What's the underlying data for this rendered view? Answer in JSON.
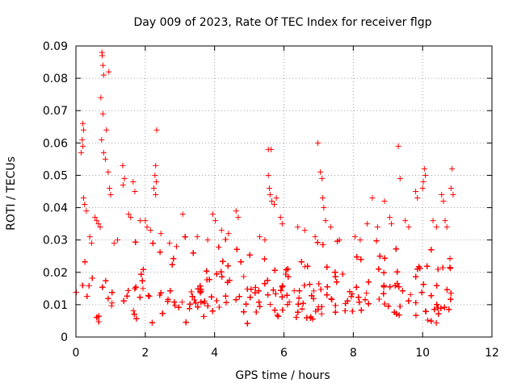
{
  "chart_data": {
    "type": "scatter",
    "title": "Day 009 of 2023, Rate Of TEC Index for receiver flgp",
    "xlabel": "GPS time / hours",
    "ylabel": "ROTI / TECUs",
    "xlim": [
      0,
      12
    ],
    "ylim": [
      0,
      0.09
    ],
    "xticks": [
      0,
      2,
      4,
      6,
      8,
      10,
      12
    ],
    "xtick_labels": [
      "0",
      "2",
      "4",
      "6",
      "8",
      "10",
      "12"
    ],
    "yticks": [
      0,
      0.01,
      0.02,
      0.03,
      0.04,
      0.05,
      0.06,
      0.07,
      0.08,
      0.09
    ],
    "ytick_labels": [
      "0",
      "0.01",
      "0.02",
      "0.03",
      "0.04",
      "0.05",
      "0.06",
      "0.07",
      "0.08",
      "0.09"
    ],
    "grid": true,
    "marker": "+",
    "color": "#ff0000",
    "series": [
      {
        "name": "ROTI",
        "points": [
          [
            0.75,
            0.088
          ],
          [
            0.76,
            0.087
          ],
          [
            0.78,
            0.084
          ],
          [
            0.8,
            0.081
          ],
          [
            0.95,
            0.082
          ],
          [
            0.72,
            0.074
          ],
          [
            0.78,
            0.069
          ],
          [
            0.2,
            0.066
          ],
          [
            0.22,
            0.064
          ],
          [
            0.18,
            0.061
          ],
          [
            0.2,
            0.059
          ],
          [
            0.15,
            0.057
          ],
          [
            0.88,
            0.064
          ],
          [
            0.74,
            0.061
          ],
          [
            0.8,
            0.057
          ],
          [
            0.85,
            0.055
          ],
          [
            2.33,
            0.064
          ],
          [
            1.35,
            0.053
          ],
          [
            0.93,
            0.051
          ],
          [
            1.4,
            0.049
          ],
          [
            1.36,
            0.047
          ],
          [
            1.65,
            0.048
          ],
          [
            0.97,
            0.046
          ],
          [
            1.0,
            0.044
          ],
          [
            1.7,
            0.045
          ],
          [
            2.3,
            0.053
          ],
          [
            2.28,
            0.05
          ],
          [
            2.32,
            0.048
          ],
          [
            2.25,
            0.046
          ],
          [
            2.3,
            0.044
          ],
          [
            0.22,
            0.043
          ],
          [
            0.25,
            0.041
          ],
          [
            0.3,
            0.039
          ],
          [
            6.98,
            0.06
          ],
          [
            9.3,
            0.059
          ],
          [
            5.55,
            0.058
          ],
          [
            5.63,
            0.058
          ],
          [
            7.05,
            0.051
          ],
          [
            7.1,
            0.049
          ],
          [
            9.35,
            0.049
          ],
          [
            10.85,
            0.052
          ],
          [
            10.05,
            0.052
          ],
          [
            10.08,
            0.05
          ],
          [
            10.02,
            0.048
          ],
          [
            10.0,
            0.046
          ],
          [
            5.55,
            0.05
          ],
          [
            5.58,
            0.046
          ],
          [
            5.6,
            0.044
          ],
          [
            5.65,
            0.042
          ],
          [
            5.72,
            0.041
          ],
          [
            5.78,
            0.043
          ],
          [
            7.12,
            0.043
          ],
          [
            7.15,
            0.04
          ],
          [
            8.55,
            0.043
          ],
          [
            8.9,
            0.042
          ],
          [
            9.8,
            0.045
          ],
          [
            9.85,
            0.043
          ],
          [
            10.55,
            0.044
          ],
          [
            10.6,
            0.042
          ],
          [
            10.82,
            0.046
          ],
          [
            10.88,
            0.044
          ],
          [
            3.08,
            0.038
          ],
          [
            3.95,
            0.038
          ],
          [
            4.02,
            0.036
          ],
          [
            4.62,
            0.039
          ],
          [
            4.68,
            0.037
          ],
          [
            0.55,
            0.037
          ],
          [
            0.6,
            0.036
          ],
          [
            0.65,
            0.035
          ],
          [
            0.7,
            0.034
          ],
          [
            1.52,
            0.038
          ],
          [
            1.58,
            0.037
          ],
          [
            1.85,
            0.036
          ],
          [
            2.0,
            0.036
          ],
          [
            2.05,
            0.034
          ],
          [
            2.15,
            0.033
          ],
          [
            2.45,
            0.032
          ],
          [
            5.9,
            0.037
          ],
          [
            5.95,
            0.035
          ],
          [
            6.4,
            0.034
          ],
          [
            6.6,
            0.033
          ],
          [
            7.2,
            0.036
          ],
          [
            7.35,
            0.034
          ],
          [
            8.4,
            0.035
          ],
          [
            8.7,
            0.034
          ],
          [
            9.05,
            0.037
          ],
          [
            9.1,
            0.035
          ],
          [
            9.5,
            0.036
          ],
          [
            9.6,
            0.034
          ],
          [
            10.3,
            0.036
          ],
          [
            10.4,
            0.034
          ],
          [
            10.65,
            0.036
          ],
          [
            10.7,
            0.034
          ],
          [
            4.2,
            0.033
          ],
          [
            4.4,
            0.032
          ],
          [
            3.5,
            0.031
          ],
          [
            3.8,
            0.03
          ],
          [
            5.3,
            0.031
          ],
          [
            5.45,
            0.03
          ],
          [
            6.9,
            0.031
          ],
          [
            7.6,
            0.03
          ],
          [
            8.05,
            0.031
          ],
          [
            8.2,
            0.03
          ],
          [
            2.7,
            0.029
          ],
          [
            2.9,
            0.028
          ],
          [
            1.2,
            0.03
          ],
          [
            1.1,
            0.029
          ],
          [
            0.4,
            0.031
          ],
          [
            0.45,
            0.029
          ]
        ]
      }
    ]
  }
}
